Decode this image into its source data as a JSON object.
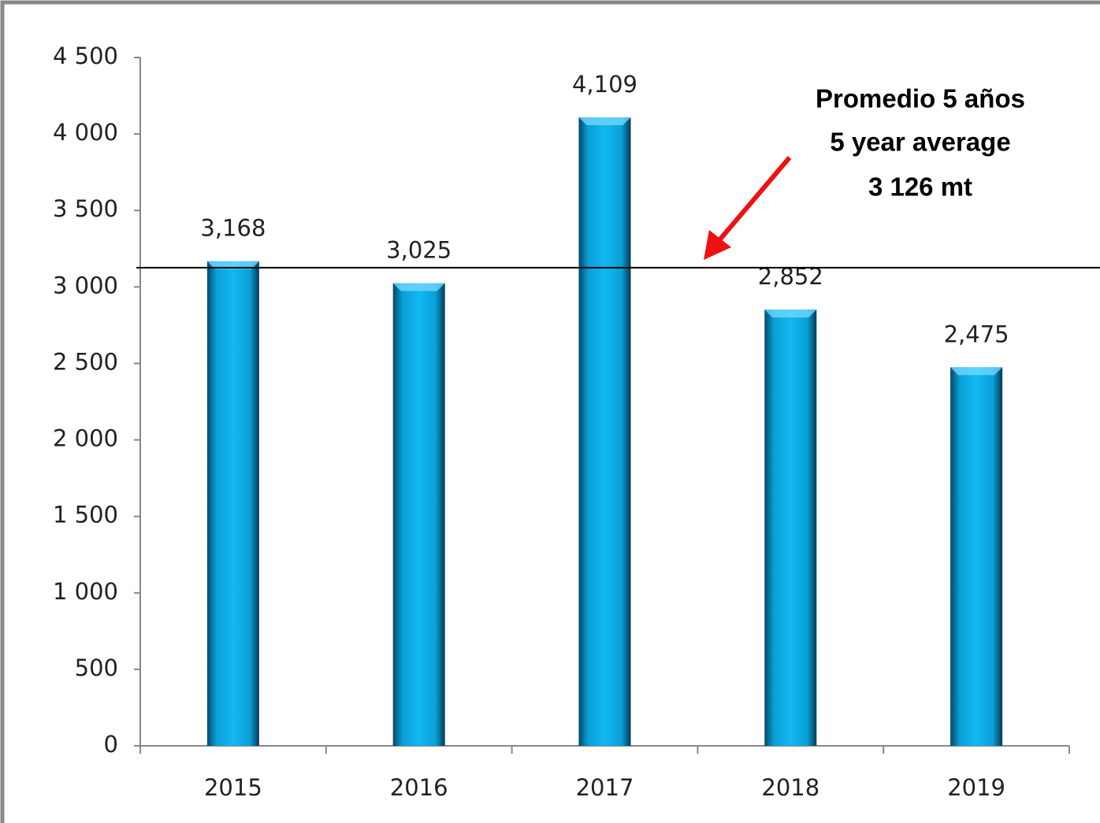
{
  "chart_data": {
    "type": "bar",
    "categories": [
      "2015",
      "2016",
      "2017",
      "2018",
      "2019"
    ],
    "values": [
      3168,
      3025,
      4109,
      2852,
      2475
    ],
    "value_labels": [
      "3,168",
      "3,025",
      "4,109",
      "2,852",
      "2,475"
    ],
    "color": "#00b0f0",
    "ylim": [
      0,
      4500
    ],
    "yticks": [
      0,
      500,
      {
        "value": 1000,
        "label": "1 000"
      },
      {
        "value": 1500,
        "label": "1 500"
      },
      {
        "value": 2000,
        "label": "2 000"
      },
      {
        "value": 2500,
        "label": "2 500"
      },
      {
        "value": 3000,
        "label": "3 000"
      },
      {
        "value": 3500,
        "label": "3 500"
      },
      {
        "value": 4000,
        "label": "4 000"
      },
      {
        "value": 4500,
        "label": "4 500"
      }
    ],
    "reference_line": {
      "value": 3126,
      "label": "3 126 mt"
    },
    "annotation": [
      "Promedio 5 años",
      "5 year average"
    ]
  }
}
